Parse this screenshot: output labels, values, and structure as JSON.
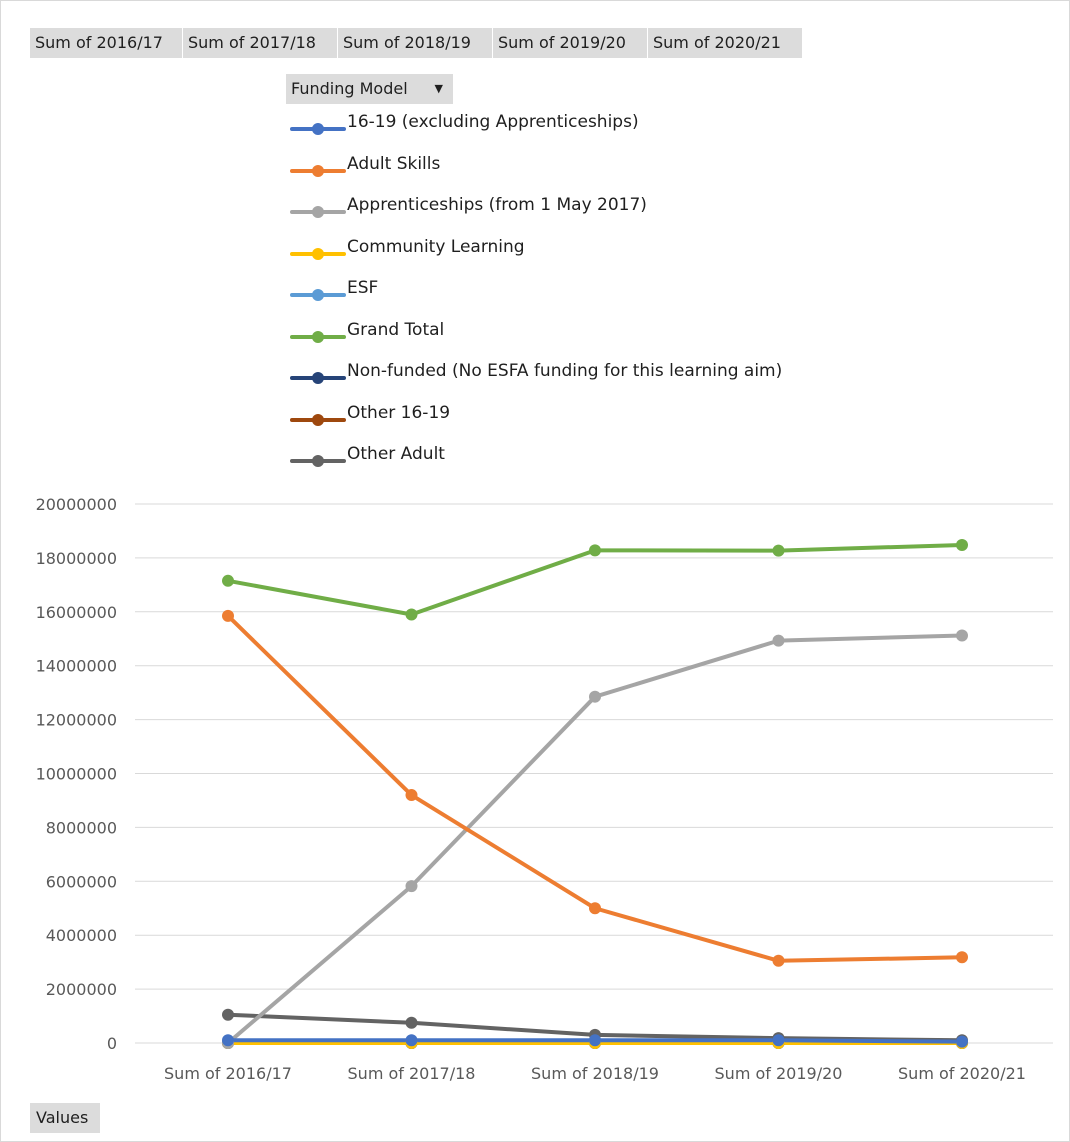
{
  "field_buttons": [
    {
      "label": "Sum of 2016/17"
    },
    {
      "label": "Sum of 2017/18"
    },
    {
      "label": "Sum of 2018/19"
    },
    {
      "label": "Sum of 2019/20"
    },
    {
      "label": "Sum of 2020/21"
    }
  ],
  "funding_model_button": {
    "label": "Funding Model",
    "arrow": "▼"
  },
  "values_button": {
    "label": "Values"
  },
  "chart_data": {
    "type": "line",
    "categories": [
      "Sum of 2016/17",
      "Sum of 2017/18",
      "Sum of 2018/19",
      "Sum of 2019/20",
      "Sum of 2020/21"
    ],
    "ylim": [
      0,
      20000000
    ],
    "yticks": [
      "0",
      "2000000",
      "4000000",
      "6000000",
      "8000000",
      "10000000",
      "12000000",
      "14000000",
      "16000000",
      "18000000",
      "20000000"
    ],
    "grid": true,
    "legend_position": "top",
    "legend_title": "Funding Model",
    "series": [
      {
        "name": "16-19 (excluding Apprenticeships)",
        "color": "#4472c4",
        "values": [
          100000,
          100000,
          100000,
          100000,
          50000
        ]
      },
      {
        "name": "Adult Skills",
        "color": "#ed7d31",
        "values": [
          15850000,
          9200000,
          5000000,
          3050000,
          3180000
        ]
      },
      {
        "name": "Apprenticeships (from 1 May 2017)",
        "color": "#a5a5a5",
        "values": [
          0,
          5820000,
          12850000,
          14930000,
          15120000
        ]
      },
      {
        "name": "Community Learning",
        "color": "#ffc000",
        "values": [
          0,
          0,
          0,
          0,
          0
        ]
      },
      {
        "name": "ESF",
        "color": "#5b9bd5",
        "values": [
          0,
          0,
          0,
          0,
          0
        ]
      },
      {
        "name": "Grand Total",
        "color": "#70ad47",
        "values": [
          17150000,
          15900000,
          18280000,
          18270000,
          18480000
        ]
      },
      {
        "name": "Non-funded (No ESFA funding for this learning aim)",
        "color": "#264478",
        "values": [
          0,
          0,
          0,
          0,
          0
        ]
      },
      {
        "name": "Other 16-19",
        "color": "#9e480e",
        "values": [
          0,
          0,
          0,
          0,
          0
        ]
      },
      {
        "name": "Other Adult",
        "color": "#636363",
        "values": [
          1050000,
          750000,
          300000,
          180000,
          100000
        ]
      }
    ]
  }
}
